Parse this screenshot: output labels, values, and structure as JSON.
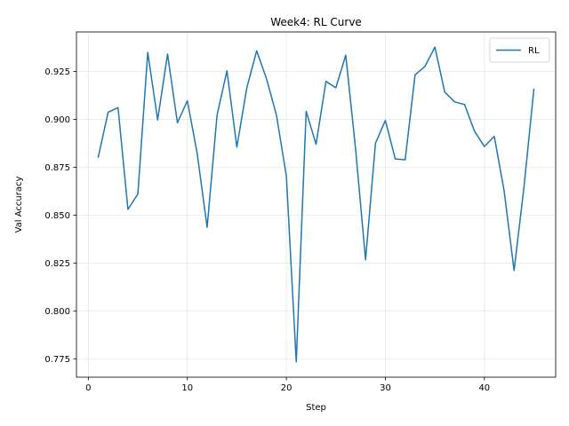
{
  "chart_data": {
    "type": "line",
    "title": "Week4: RL Curve",
    "xlabel": "Step",
    "ylabel": "Val Accuracy",
    "xlim": [
      -1.2,
      47.2
    ],
    "ylim": [
      0.7654,
      0.9456
    ],
    "xticks": [
      0,
      10,
      20,
      30,
      40
    ],
    "yticks": [
      0.775,
      0.8,
      0.825,
      0.85,
      0.875,
      0.9,
      0.925
    ],
    "ytick_labels": [
      "0.775",
      "0.800",
      "0.825",
      "0.850",
      "0.875",
      "0.900",
      "0.925"
    ],
    "grid": true,
    "legend_position": "top-right",
    "series": [
      {
        "name": "RL",
        "color": "#1f77b4",
        "x": [
          1,
          2,
          3,
          4,
          5,
          6,
          7,
          8,
          9,
          10,
          11,
          12,
          13,
          14,
          15,
          16,
          17,
          18,
          19,
          20,
          21,
          22,
          23,
          24,
          25,
          26,
          27,
          28,
          29,
          30,
          31,
          32,
          33,
          34,
          35,
          36,
          37,
          38,
          39,
          40,
          41,
          42,
          43,
          44,
          45
        ],
        "y": [
          0.8803,
          0.9037,
          0.9061,
          0.853,
          0.861,
          0.9349,
          0.8997,
          0.934,
          0.8982,
          0.9097,
          0.882,
          0.8436,
          0.9022,
          0.9253,
          0.8855,
          0.9163,
          0.9358,
          0.9211,
          0.9022,
          0.8704,
          0.7734,
          0.9042,
          0.887,
          0.9198,
          0.9165,
          0.9335,
          0.884,
          0.8267,
          0.8875,
          0.8994,
          0.8793,
          0.8789,
          0.9232,
          0.9276,
          0.9377,
          0.9142,
          0.9091,
          0.9077,
          0.8938,
          0.8858,
          0.8911,
          0.8625,
          0.8211,
          0.8646,
          0.9157
        ]
      }
    ]
  }
}
